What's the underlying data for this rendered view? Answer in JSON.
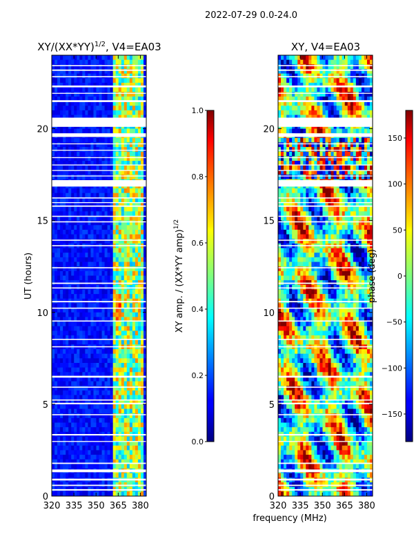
{
  "suptitle": "2022-07-29 0.0-24.0",
  "chart_data": [
    {
      "type": "heatmap",
      "title": "XY/(XX*YY)$^{1/2}$, V4=EA03",
      "title_parts": {
        "main": "XY/(XX*YY)",
        "sup": "1/2",
        "tail": ", V4=EA03"
      },
      "xlabel": "frequency (MHz)",
      "ylabel": "UT (hours)",
      "xlim": [
        320,
        384
      ],
      "ylim": [
        0,
        24
      ],
      "xticks": [
        "320",
        "335",
        "350",
        "365",
        "380"
      ],
      "xtick_values": [
        320,
        335,
        350,
        365,
        380
      ],
      "yticks": [
        "0",
        "5",
        "10",
        "15",
        "20"
      ],
      "ytick_values": [
        0,
        5,
        10,
        15,
        20
      ],
      "colorbar": {
        "label_main": "XY amp. / (XX*YY amp)",
        "label_sup": "1/2",
        "range": [
          0.0,
          1.0
        ],
        "ticks": [
          "0.0",
          "0.2",
          "0.4",
          "0.6",
          "0.8",
          "1.0"
        ],
        "tick_values": [
          0.0,
          0.2,
          0.4,
          0.6,
          0.8,
          1.0
        ]
      },
      "colormap": "jet"
    },
    {
      "type": "heatmap",
      "title": "XY, V4=EA03",
      "xlim": [
        320,
        384
      ],
      "ylim": [
        0,
        24
      ],
      "xticks": [
        "320",
        "335",
        "350",
        "365",
        "380"
      ],
      "xtick_values": [
        320,
        335,
        350,
        365,
        380
      ],
      "yticks": [
        "0",
        "5",
        "10",
        "15",
        "20"
      ],
      "ytick_values": [
        0,
        5,
        10,
        15,
        20
      ],
      "colorbar": {
        "label": "phase (deg)",
        "range": [
          -180,
          180
        ],
        "ticks": [
          "−150",
          "−100",
          "−50",
          "0",
          "50",
          "100",
          "150"
        ],
        "tick_values": [
          -150,
          -100,
          -50,
          0,
          50,
          100,
          150
        ]
      },
      "colormap": "jet"
    }
  ],
  "blank_time_bands_hours": [
    [
      0.3,
      0.38
    ],
    [
      0.55,
      0.62
    ],
    [
      0.85,
      0.95
    ],
    [
      1.3,
      1.45
    ],
    [
      1.75,
      1.82
    ],
    [
      2.95,
      3.0
    ],
    [
      3.3,
      3.38
    ],
    [
      4.4,
      4.46
    ],
    [
      5.0,
      5.08
    ],
    [
      5.2,
      5.26
    ],
    [
      5.9,
      5.96
    ],
    [
      6.45,
      6.55
    ],
    [
      8.1,
      8.16
    ],
    [
      8.5,
      8.56
    ],
    [
      9.5,
      9.56
    ],
    [
      10.2,
      10.26
    ],
    [
      10.55,
      10.62
    ],
    [
      11.3,
      11.36
    ],
    [
      11.55,
      11.62
    ],
    [
      12.4,
      12.46
    ],
    [
      13.6,
      13.66
    ],
    [
      13.9,
      13.96
    ],
    [
      14.9,
      14.96
    ],
    [
      15.2,
      15.26
    ],
    [
      15.75,
      15.82
    ],
    [
      15.95,
      16.0
    ],
    [
      16.2,
      16.26
    ],
    [
      16.85,
      17.2
    ],
    [
      17.4,
      17.45
    ],
    [
      17.7,
      17.75
    ],
    [
      18.0,
      18.05
    ],
    [
      18.4,
      18.45
    ],
    [
      18.8,
      18.85
    ],
    [
      19.15,
      19.2
    ],
    [
      19.55,
      19.75
    ],
    [
      20.1,
      20.6
    ],
    [
      21.45,
      21.55
    ],
    [
      21.9,
      21.95
    ],
    [
      22.25,
      22.35
    ],
    [
      22.8,
      22.86
    ],
    [
      23.15,
      23.22
    ],
    [
      23.4,
      23.46
    ]
  ]
}
